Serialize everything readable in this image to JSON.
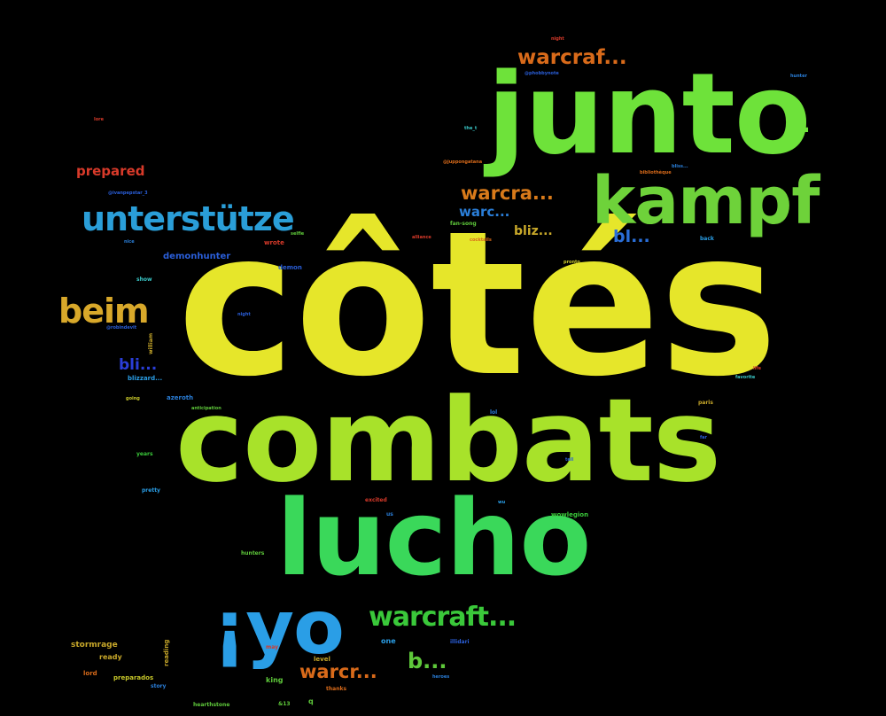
{
  "background": "#000000",
  "words": [
    {
      "key": "cotes",
      "text": "côtés",
      "color": "#e6e62a"
    },
    {
      "key": "combats",
      "text": "combats",
      "color": "#a8e22a"
    },
    {
      "key": "junto",
      "text": "junto",
      "color": "#6ee23a"
    },
    {
      "key": "junto_dots",
      "text": "...",
      "color": "#6ee23a"
    },
    {
      "key": "lucho",
      "text": "lucho",
      "color": "#3ad85a"
    },
    {
      "key": "kampf",
      "text": "kampf",
      "color": "#6ed23a"
    },
    {
      "key": "yo",
      "text": "¡yo",
      "color": "#2a9ee6"
    },
    {
      "key": "unterstutze",
      "text": "unterstütze",
      "color": "#2a9ed8"
    },
    {
      "key": "beim",
      "text": "beim",
      "color": "#d8a82a"
    },
    {
      "key": "warcraft_ellipsis",
      "text": "warcraft...",
      "color": "#3ac83a"
    },
    {
      "key": "warcraf_top",
      "text": "warcraf...",
      "color": "#d86a1a"
    },
    {
      "key": "warcra_mid",
      "text": "warcra...",
      "color": "#d87a1a"
    },
    {
      "key": "warc_mid",
      "text": "warc...",
      "color": "#2a7ed8"
    },
    {
      "key": "bliz_mid",
      "text": "bliz...",
      "color": "#c8a82a"
    },
    {
      "key": "bl_mid",
      "text": "bl...",
      "color": "#2a6ed8"
    },
    {
      "key": "b_dots",
      "text": "b...",
      "color": "#5ec83a"
    },
    {
      "key": "warcr_bottom",
      "text": "warcr...",
      "color": "#d86a1a"
    },
    {
      "key": "prepared",
      "text": "prepared",
      "color": "#d83a2a"
    },
    {
      "key": "bli_left",
      "text": "bli...",
      "color": "#2a3ed8"
    },
    {
      "key": "demonhunter",
      "text": "demonhunter",
      "color": "#2a5ed8"
    },
    {
      "key": "stormrage",
      "text": "stormrage",
      "color": "#c8a82a"
    },
    {
      "key": "ready",
      "text": "ready",
      "color": "#c8a82a"
    },
    {
      "key": "preparados",
      "text": "preparados",
      "color": "#c8c82a"
    },
    {
      "key": "lord",
      "text": "lord",
      "color": "#d86a1a"
    },
    {
      "key": "story",
      "text": "story",
      "color": "#2a7ed8"
    },
    {
      "key": "reading",
      "text": "reading",
      "color": "#c8a82a"
    },
    {
      "key": "hearthstone",
      "text": "hearthstone",
      "color": "#5ec83a"
    },
    {
      "key": "level",
      "text": "level",
      "color": "#c8a82a"
    },
    {
      "key": "king",
      "text": "king",
      "color": "#5ec83a"
    },
    {
      "key": "one",
      "text": "one",
      "color": "#2a9ee6"
    },
    {
      "key": "thanks",
      "text": "thanks",
      "color": "#d86a1a"
    },
    {
      "key": "may",
      "text": "may",
      "color": "#d83a2a"
    },
    {
      "key": "n813",
      "text": "&13",
      "color": "#5ec83a"
    },
    {
      "key": "illidari",
      "text": "illidari",
      "color": "#2a5ed8"
    },
    {
      "key": "heroes",
      "text": "heroes",
      "color": "#2a7ed8"
    },
    {
      "key": "wowlegion",
      "text": "wowlegion",
      "color": "#3ac83a"
    },
    {
      "key": "us",
      "text": "us",
      "color": "#2a7ed8"
    },
    {
      "key": "excited",
      "text": "excited",
      "color": "#d83a2a"
    },
    {
      "key": "hunters",
      "text": "hunters",
      "color": "#5ec83a"
    },
    {
      "key": "pretty",
      "text": "pretty",
      "color": "#2a9ee6"
    },
    {
      "key": "years",
      "text": "years",
      "color": "#3ac83a"
    },
    {
      "key": "going",
      "text": "going",
      "color": "#c8c82a"
    },
    {
      "key": "azeroth",
      "text": "azeroth",
      "color": "#2a7ed8"
    },
    {
      "key": "anticipation",
      "text": "anticipation",
      "color": "#5ec83a"
    },
    {
      "key": "blizzard",
      "text": "blizzard...",
      "color": "#2a9ee6"
    },
    {
      "key": "robindevit",
      "text": "@robindevit",
      "color": "#2a5ed8"
    },
    {
      "key": "william",
      "text": "william",
      "color": "#c8a82a"
    },
    {
      "key": "show",
      "text": "show",
      "color": "#3ac8c8"
    },
    {
      "key": "demon",
      "text": "demon",
      "color": "#2a5ed8"
    },
    {
      "key": "wrote",
      "text": "wrote",
      "color": "#d83a2a"
    },
    {
      "key": "selfie",
      "text": "selfie",
      "color": "#5ec83a"
    },
    {
      "key": "ivanpepstar",
      "text": "@ivanpepstar_3",
      "color": "#2a5ed8"
    },
    {
      "key": "nice",
      "text": "nice",
      "color": "#2a7ed8"
    },
    {
      "key": "lore",
      "text": "lore",
      "color": "#d83a2a"
    },
    {
      "key": "the_t",
      "text": "the_t",
      "color": "#3ac8c8"
    },
    {
      "key": "juppongatana",
      "text": "@juppongatana",
      "color": "#d86a1a"
    },
    {
      "key": "phobbynote",
      "text": "@phobbynote",
      "color": "#2a5ed8"
    },
    {
      "key": "night",
      "text": "night",
      "color": "#d83a2a"
    },
    {
      "key": "hunter",
      "text": "hunter",
      "color": "#2a7ed8"
    },
    {
      "key": "bliss",
      "text": "bliss...",
      "color": "#2a7ed8"
    },
    {
      "key": "bibliotheque",
      "text": "bibliothèque",
      "color": "#d86a1a"
    },
    {
      "key": "fansong",
      "text": "fan-song",
      "color": "#5ec83a"
    },
    {
      "key": "alliance",
      "text": "alliance",
      "color": "#d83a2a"
    },
    {
      "key": "cocktails",
      "text": "cocktails",
      "color": "#d86a1a"
    },
    {
      "key": "pronto",
      "text": "pronto",
      "color": "#c8c82a"
    },
    {
      "key": "back",
      "text": "back",
      "color": "#2a9ee6"
    },
    {
      "key": "night2",
      "text": "night",
      "color": "#2a5ed8"
    },
    {
      "key": "life",
      "text": "life",
      "color": "#d83a2a"
    },
    {
      "key": "favorite",
      "text": "favorite",
      "color": "#3ac8c8"
    },
    {
      "key": "paris",
      "text": "paris",
      "color": "#c8a82a"
    },
    {
      "key": "lol",
      "text": "lol",
      "color": "#2a7ed8"
    },
    {
      "key": "far",
      "text": "far",
      "color": "#2a5ed8"
    },
    {
      "key": "tell",
      "text": "tell",
      "color": "#2a5ed8"
    },
    {
      "key": "wu",
      "text": "wu",
      "color": "#2a9ee6"
    },
    {
      "key": "q",
      "text": "q",
      "color": "#5ec83a"
    }
  ]
}
